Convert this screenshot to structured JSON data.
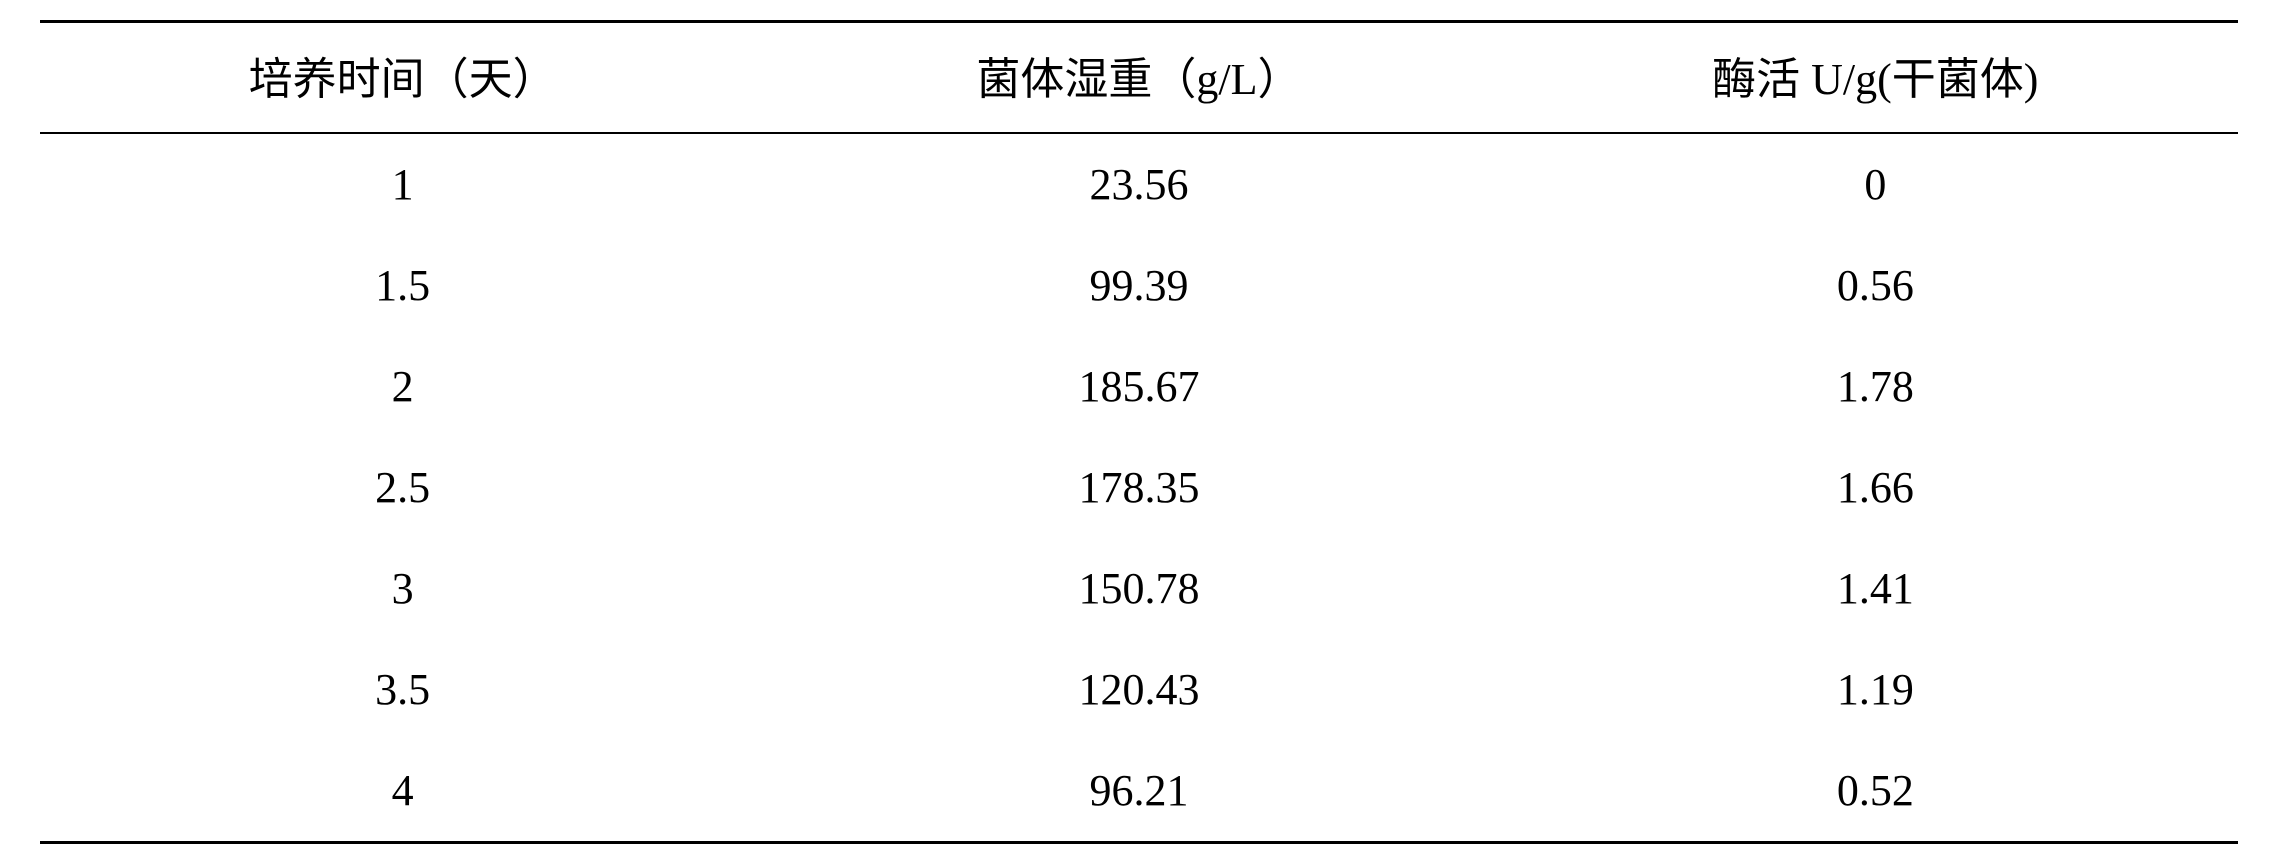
{
  "table": {
    "type": "table",
    "background_color": "#ffffff",
    "text_color": "#000000",
    "font_family": "Times New Roman, SimSun, serif",
    "header_fontsize": 44,
    "cell_fontsize": 44,
    "border_top_width": 3,
    "header_border_bottom_width": 2,
    "border_bottom_width": 3,
    "border_color": "#000000",
    "columns": [
      {
        "header": "培养时间（天）",
        "align": "center",
        "width_pct": 33
      },
      {
        "header": "菌体湿重（g/L）",
        "align": "center",
        "width_pct": 34
      },
      {
        "header": "酶活 U/g(干菌体)",
        "align": "center",
        "width_pct": 33
      }
    ],
    "rows": [
      [
        "1",
        "23.56",
        "0"
      ],
      [
        "1.5",
        "99.39",
        "0.56"
      ],
      [
        "2",
        "185.67",
        "1.78"
      ],
      [
        "2.5",
        "178.35",
        "1.66"
      ],
      [
        "3",
        "150.78",
        "1.41"
      ],
      [
        "3.5",
        "120.43",
        "1.19"
      ],
      [
        "4",
        "96.21",
        "0.52"
      ]
    ]
  }
}
